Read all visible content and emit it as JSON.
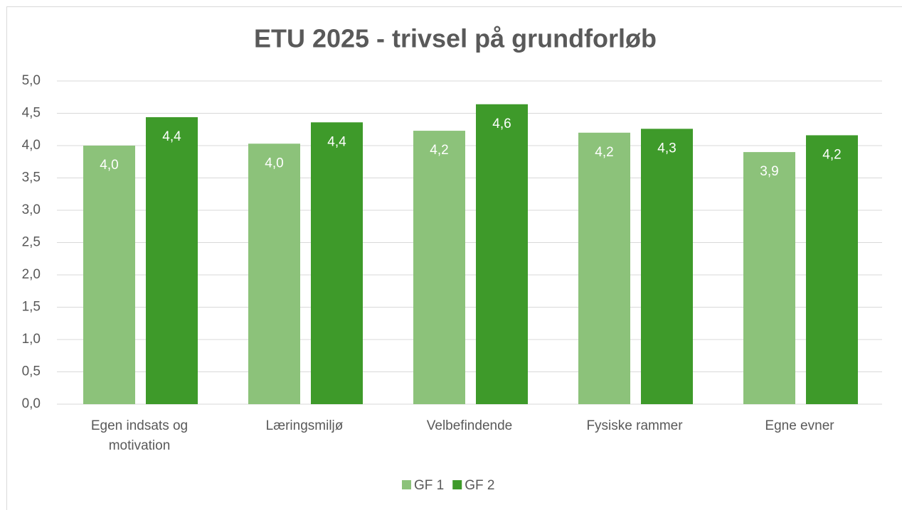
{
  "chart_data": {
    "type": "bar",
    "title": "ETU 2025 - trivsel på grundforløb",
    "categories": [
      "Egen indsats og motivation",
      "Læringsmiljø",
      "Velbefindende",
      "Fysiske rammer",
      "Egne evner"
    ],
    "series": [
      {
        "name": "GF 1",
        "color": "#8cc27a",
        "values": [
          4.0,
          4.03,
          4.23,
          4.2,
          3.9
        ],
        "value_labels": [
          "4,0",
          "4,0",
          "4,2",
          "4,2",
          "3,9"
        ]
      },
      {
        "name": "GF 2",
        "color": "#3e9a2a",
        "values": [
          4.44,
          4.36,
          4.64,
          4.26,
          4.16
        ],
        "value_labels": [
          "4,4",
          "4,4",
          "4,6",
          "4,3",
          "4,2"
        ]
      }
    ],
    "ylim": [
      0,
      5
    ],
    "yticks": [
      {
        "value": 0,
        "label": "0,0"
      },
      {
        "value": 0.5,
        "label": "0,5"
      },
      {
        "value": 1,
        "label": "1,0"
      },
      {
        "value": 1.5,
        "label": "1,5"
      },
      {
        "value": 2,
        "label": "2,0"
      },
      {
        "value": 2.5,
        "label": "2,5"
      },
      {
        "value": 3,
        "label": "3,0"
      },
      {
        "value": 3.5,
        "label": "3,5"
      },
      {
        "value": 4,
        "label": "4,0"
      },
      {
        "value": 4.5,
        "label": "4,5"
      },
      {
        "value": 5,
        "label": "5,0"
      }
    ],
    "grid": true,
    "legend": "bottom"
  }
}
